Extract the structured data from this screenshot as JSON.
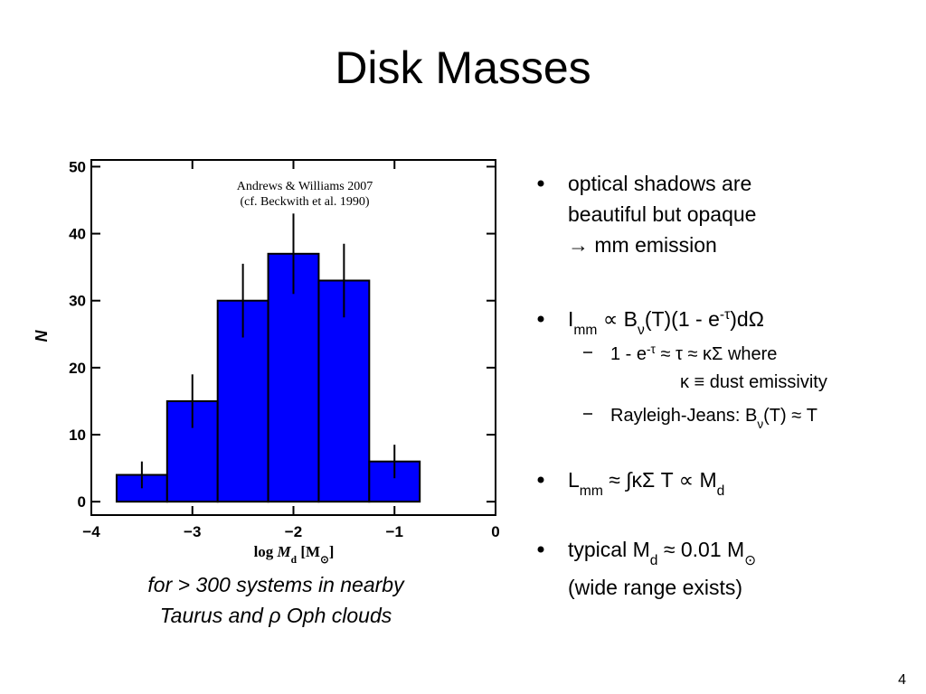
{
  "title": "Disk Masses",
  "chart_data": {
    "type": "histogram",
    "annotation": [
      "Andrews & Williams 2007",
      "(cf. Beckwith et al. 1990)"
    ],
    "xlabel": [
      {
        "text": "log "
      },
      {
        "italic": "M"
      },
      {
        "sub": "d"
      },
      {
        "text": " [M"
      },
      {
        "sub": "⊙"
      },
      {
        "text": "]"
      }
    ],
    "ylabel": "N",
    "bins": [
      -3.75,
      -3.25,
      -2.75,
      -2.25,
      -1.75,
      -1.25,
      -0.75
    ],
    "counts": [
      4,
      15,
      30,
      37,
      33,
      6
    ],
    "errors": [
      2,
      4,
      5.5,
      6,
      5.5,
      2.5
    ],
    "color": "#0000ff",
    "xlim": [
      -4,
      0
    ],
    "xticks": [
      {
        "value": -4,
        "label": "−4"
      },
      {
        "value": -3,
        "label": "−3"
      },
      {
        "value": -2,
        "label": "−2"
      },
      {
        "value": -1,
        "label": "−1"
      },
      0
    ],
    "ylim": [
      -2,
      51
    ],
    "yticks": [
      0,
      10,
      20,
      30,
      40,
      50
    ]
  },
  "caption": [
    "for > 300 systems in nearby",
    "Taurus and ρ Oph clouds"
  ],
  "bullets": [
    {
      "lines": [
        [
          "optical shadows are"
        ],
        [
          "beautiful but opaque"
        ],
        [
          "→ mm emission"
        ]
      ]
    },
    {
      "lines": [
        [
          "I",
          {
            "sub": "mm"
          },
          " ∝ B",
          {
            "sub": "ν"
          },
          "(T)(1 - e",
          {
            "sup": "-τ"
          },
          ")dΩ"
        ]
      ],
      "subs": [
        {
          "lines": [
            [
              "1 - e",
              {
                "sup": "-τ"
              },
              " ≈ τ ≈ κΣ    where"
            ],
            [
              "κ ≡ dust emissivity"
            ]
          ]
        },
        {
          "lines": [
            [
              "Rayleigh-Jeans: B",
              {
                "sub": "ν"
              },
              "(T) ≈ T"
            ]
          ]
        }
      ]
    },
    {
      "lines": [
        [
          "L",
          {
            "sub": "mm"
          },
          " ≈ ∫κΣ T ∝ M",
          {
            "sub": "d"
          }
        ]
      ]
    },
    {
      "lines": [
        [
          "typical M",
          {
            "sub": "d"
          },
          " ≈ 0.01 M",
          {
            "sub": "⊙"
          }
        ],
        [
          "(wide range exists)"
        ]
      ]
    }
  ],
  "page_number": "4"
}
